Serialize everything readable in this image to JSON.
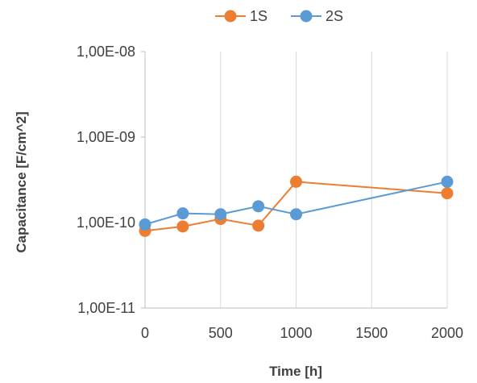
{
  "chart_data": {
    "type": "line",
    "title": "",
    "xlabel": "Time [h]",
    "ylabel": "Capacitance [F/cm^2]",
    "x_ticks": [
      "0",
      "500",
      "1000",
      "1500",
      "2000"
    ],
    "y_ticks": [
      "1,00E-11",
      "1,00E-10",
      "1,00E-09",
      "1,00E-08"
    ],
    "xlim": [
      0,
      2000
    ],
    "ylim": [
      1e-11,
      1e-08
    ],
    "y_scale": "log",
    "grid": "vertical",
    "legend_position": "top",
    "series": [
      {
        "name": "1S",
        "color": "#ed7d31",
        "x": [
          0,
          250,
          500,
          750,
          1000,
          2000
        ],
        "y": [
          8e-11,
          9e-11,
          1.1e-10,
          9.2e-11,
          3e-10,
          2.2e-10
        ]
      },
      {
        "name": "2S",
        "color": "#5b9bd5",
        "x": [
          0,
          250,
          500,
          750,
          1000,
          2000
        ],
        "y": [
          9.5e-11,
          1.28e-10,
          1.25e-10,
          1.55e-10,
          1.25e-10,
          3e-10
        ]
      }
    ]
  }
}
